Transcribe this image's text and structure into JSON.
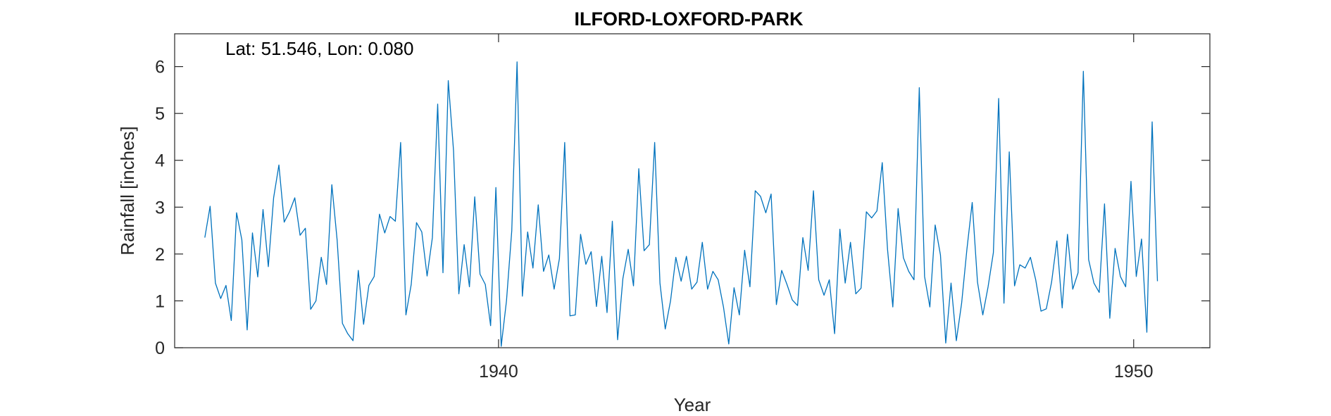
{
  "chart_data": {
    "type": "line",
    "title": "ILFORD-LOXFORD-PARK",
    "annotation": "Lat: 51.546, Lon: 0.080",
    "xlabel": "Year",
    "ylabel": "Rainfall [inches]",
    "xlim": [
      1934.9,
      1951.2
    ],
    "ylim": [
      0,
      6.7
    ],
    "xticks": [
      1940,
      1950
    ],
    "yticks": [
      0,
      1,
      2,
      3,
      4,
      5,
      6
    ],
    "grid": false,
    "line_color": "#0072BD",
    "series": [
      {
        "start_year": 1935.375,
        "step": 0.08333,
        "values": [
          2.35,
          3.02,
          1.38,
          1.05,
          1.33,
          0.58,
          2.88,
          2.3,
          0.38,
          2.45,
          1.51,
          2.95,
          1.73,
          3.2,
          3.9,
          2.68,
          2.9,
          3.2,
          2.4,
          2.55,
          0.82,
          1.0,
          1.93,
          1.35,
          3.48,
          2.3,
          0.52,
          0.3,
          0.15,
          1.65,
          0.5,
          1.33,
          1.52,
          2.85,
          2.45,
          2.8,
          2.7,
          4.38,
          0.7,
          1.35,
          2.67,
          2.47,
          1.53,
          2.35,
          5.2,
          1.6,
          5.7,
          4.2,
          1.15,
          2.2,
          1.3,
          3.22,
          1.57,
          1.35,
          0.47,
          3.42,
          0.03,
          1.0,
          2.5,
          6.1,
          1.1,
          2.47,
          1.7,
          3.05,
          1.63,
          1.98,
          1.25,
          1.9,
          4.38,
          0.68,
          0.7,
          2.42,
          1.78,
          2.05,
          0.88,
          1.95,
          0.75,
          2.7,
          0.17,
          1.48,
          2.1,
          1.32,
          3.82,
          2.07,
          2.2,
          4.38,
          1.38,
          0.4,
          1.0,
          1.93,
          1.42,
          1.95,
          1.25,
          1.4,
          2.25,
          1.25,
          1.63,
          1.45,
          0.87,
          0.08,
          1.28,
          0.7,
          2.08,
          1.3,
          3.35,
          3.23,
          2.88,
          3.28,
          0.92,
          1.65,
          1.35,
          1.02,
          0.9,
          2.35,
          1.65,
          3.35,
          1.45,
          1.12,
          1.45,
          0.3,
          2.53,
          1.38,
          2.25,
          1.15,
          1.27,
          2.9,
          2.77,
          2.92,
          3.95,
          2.1,
          0.87,
          2.97,
          1.92,
          1.63,
          1.45,
          5.55,
          1.52,
          0.87,
          2.62,
          1.98,
          0.1,
          1.38,
          0.15,
          0.95,
          2.1,
          3.1,
          1.4,
          0.7,
          1.3,
          2.03,
          5.32,
          0.95,
          4.18,
          1.32,
          1.77,
          1.7,
          1.93,
          1.45,
          0.78,
          0.83,
          1.4,
          2.28,
          0.85,
          2.42,
          1.25,
          1.6,
          5.9,
          1.88,
          1.38,
          1.18,
          3.07,
          0.63,
          2.12,
          1.52,
          1.3,
          3.55,
          1.52,
          2.32,
          0.33,
          4.82,
          1.42
        ]
      }
    ]
  }
}
